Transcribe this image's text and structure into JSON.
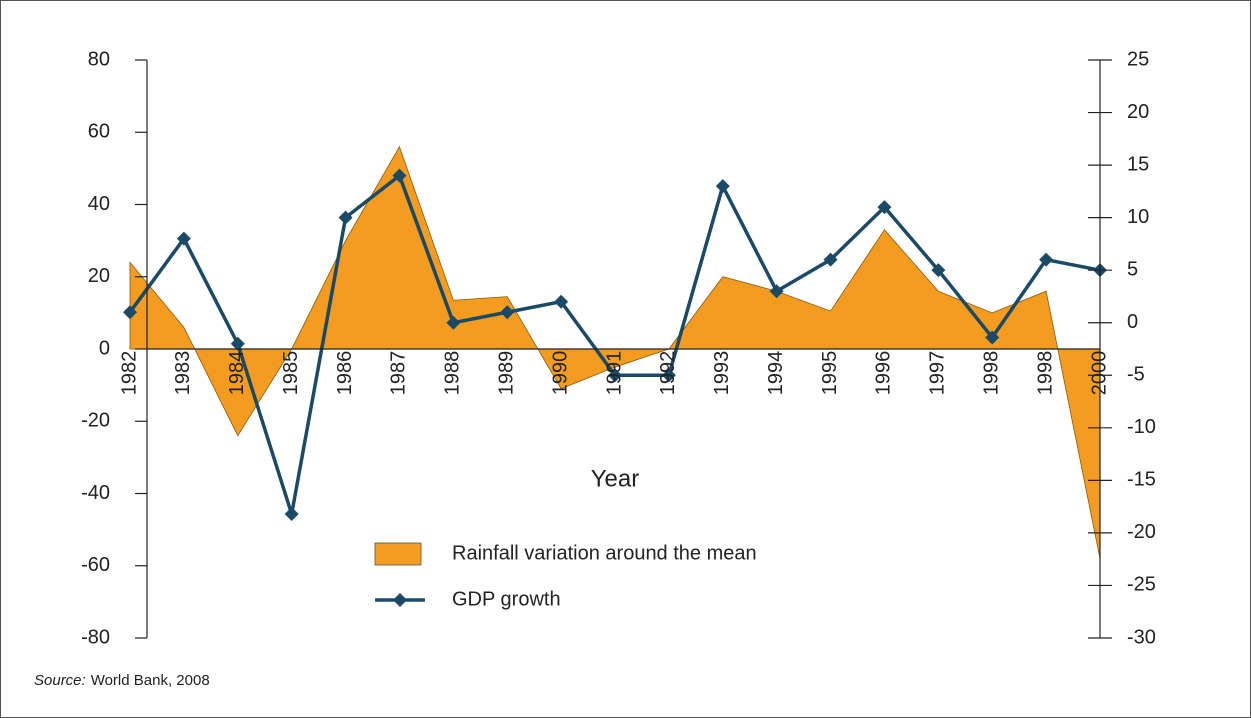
{
  "chart_data": {
    "type": "combo",
    "x_label": "Year",
    "source_label": "Source:",
    "source_text": "World Bank, 2008",
    "categories": [
      "1982",
      "1983",
      "1984",
      "1985",
      "1986",
      "1987",
      "1988",
      "1989",
      "1990",
      "1991",
      "1992",
      "1993",
      "1994",
      "1995",
      "1996",
      "1997",
      "1998",
      "1998",
      "2000"
    ],
    "series": [
      {
        "name": "Rainfall variation around the mean",
        "type": "area",
        "color": "#f39c1f",
        "axis": "y",
        "values": [
          24,
          6,
          -24,
          0,
          30,
          56,
          13.5,
          14.5,
          -11,
          -5,
          0,
          20,
          16,
          10.5,
          33,
          16,
          10,
          16,
          -58
        ]
      },
      {
        "name": "GDP growth",
        "type": "line",
        "color": "#1a4a66",
        "axis": "y2",
        "values": [
          1,
          8,
          -2,
          -18.2,
          10,
          14,
          0,
          1,
          2,
          -5,
          -5,
          13,
          3,
          6,
          11,
          5,
          -1.4,
          6,
          5
        ]
      }
    ],
    "ylim": [
      -80,
      80
    ],
    "yticks": [
      -80,
      -60,
      -40,
      -20,
      0,
      20,
      40,
      60,
      80
    ],
    "y2lim": [
      -30,
      25
    ],
    "y2ticks": [
      -30,
      -25,
      -20,
      -15,
      -10,
      -5,
      0,
      5,
      10,
      15,
      20,
      25
    ]
  }
}
